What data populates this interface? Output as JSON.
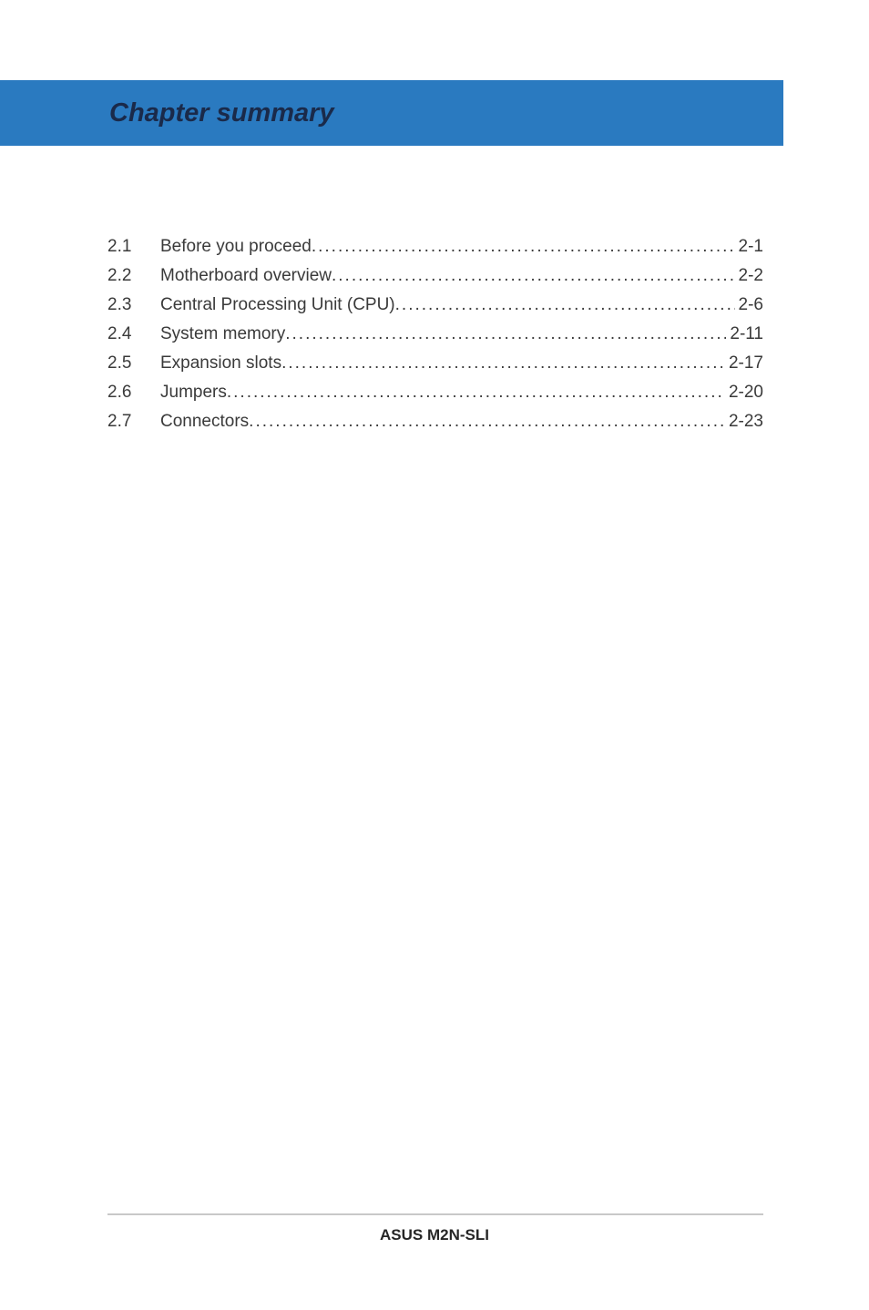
{
  "banner": {
    "title": "Chapter summary",
    "background_color": "#2a7ac0",
    "text_color": "#1a2a4a"
  },
  "toc": {
    "text_color": "#3a3a3a",
    "font_size_pt": 14,
    "items": [
      {
        "num": "2.1",
        "title": "Before you proceed",
        "page": "2-1"
      },
      {
        "num": "2.2",
        "title": "Motherboard overview",
        "page": "2-2"
      },
      {
        "num": "2.3",
        "title": "Central Processing Unit (CPU)",
        "page": "2-6"
      },
      {
        "num": "2.4",
        "title": "System memory",
        "page": "2-11"
      },
      {
        "num": "2.5",
        "title": "Expansion slots",
        "page": "2-17"
      },
      {
        "num": "2.6",
        "title": "Jumpers",
        "page": "2-20"
      },
      {
        "num": "2.7",
        "title": "Connectors",
        "page": "2-23"
      }
    ]
  },
  "footer": {
    "text": "ASUS M2N-SLI",
    "rule_color": "#c8c8c8"
  },
  "page_background": "#ffffff"
}
